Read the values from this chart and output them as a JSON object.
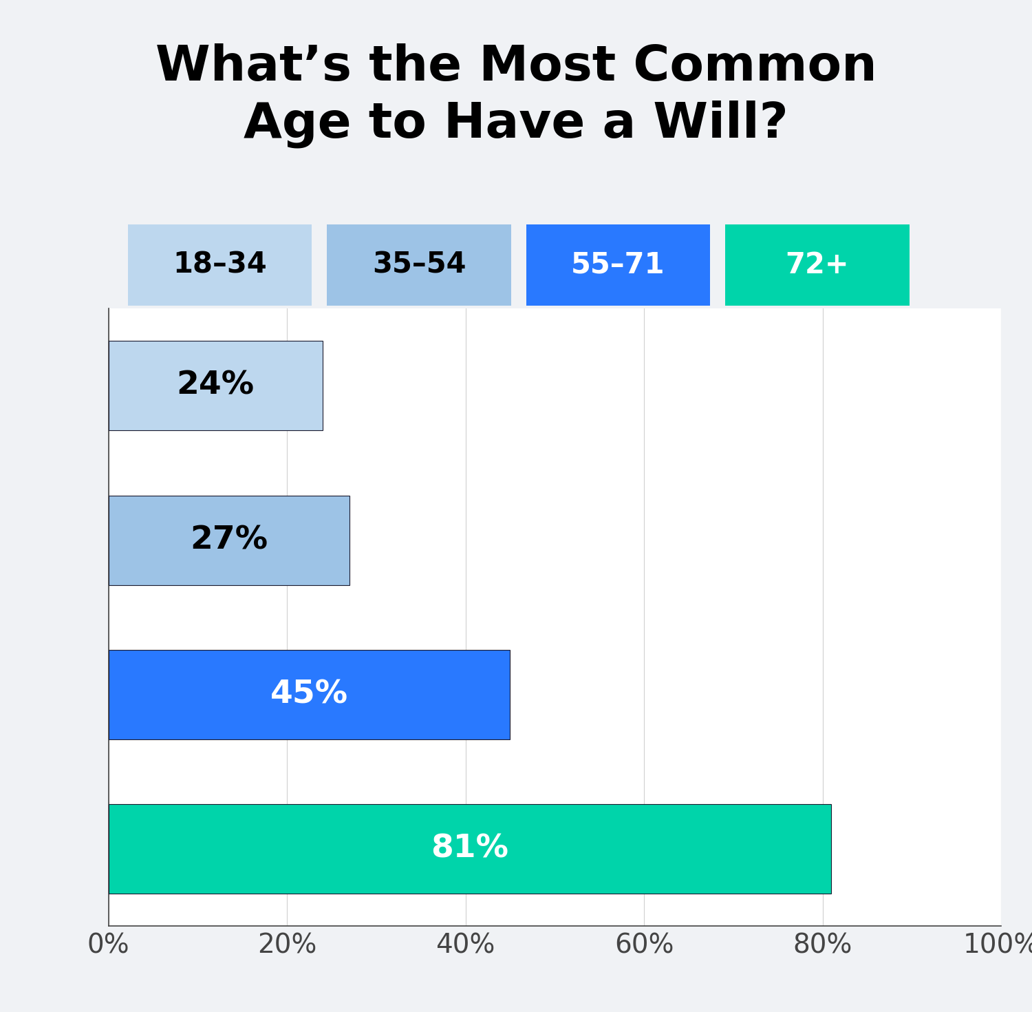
{
  "title": "What’s the Most Common\nAge to Have a Will?",
  "categories": [
    "18–34",
    "35–54",
    "55–71",
    "72+"
  ],
  "values": [
    24,
    27,
    45,
    81
  ],
  "bar_colors": [
    "#BDD7EE",
    "#9DC3E6",
    "#2979FF",
    "#00D4AA"
  ],
  "legend_colors": [
    "#BDD7EE",
    "#9DC3E6",
    "#2979FF",
    "#00D4AA"
  ],
  "label_colors": [
    "#000000",
    "#000000",
    "#ffffff",
    "#ffffff"
  ],
  "legend_label_colors": [
    "#000000",
    "#000000",
    "#ffffff",
    "#ffffff"
  ],
  "background_color": "#f0f2f5",
  "chart_background": "#ffffff",
  "title_fontsize": 52,
  "bar_label_fontsize": 34,
  "legend_fontsize": 30,
  "tick_fontsize": 28,
  "xlim": [
    0,
    100
  ],
  "xticks": [
    0,
    20,
    40,
    60,
    80,
    100
  ],
  "xtick_labels": [
    "0%",
    "20%",
    "40%",
    "60%",
    "80%",
    "100%"
  ]
}
